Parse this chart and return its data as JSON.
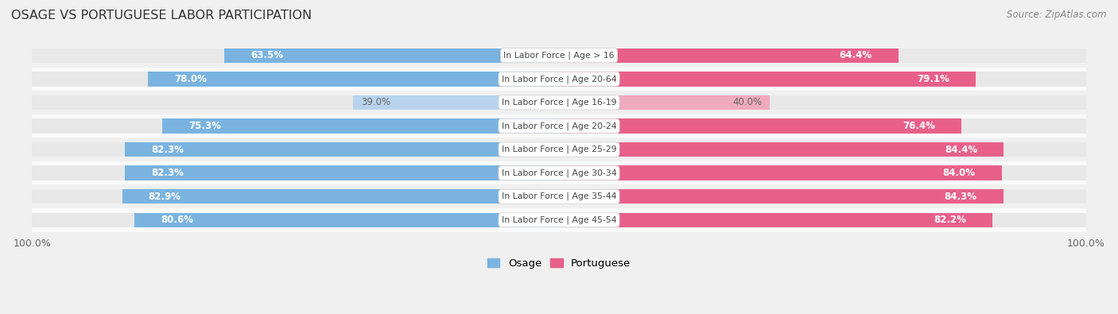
{
  "title": "OSAGE VS PORTUGUESE LABOR PARTICIPATION",
  "source": "Source: ZipAtlas.com",
  "categories": [
    "In Labor Force | Age > 16",
    "In Labor Force | Age 20-64",
    "In Labor Force | Age 16-19",
    "In Labor Force | Age 20-24",
    "In Labor Force | Age 25-29",
    "In Labor Force | Age 30-34",
    "In Labor Force | Age 35-44",
    "In Labor Force | Age 45-54"
  ],
  "osage_values": [
    63.5,
    78.0,
    39.0,
    75.3,
    82.3,
    82.3,
    82.9,
    80.6
  ],
  "portuguese_values": [
    64.4,
    79.1,
    40.0,
    76.4,
    84.4,
    84.0,
    84.3,
    82.2
  ],
  "osage_color": "#7ab3e0",
  "osage_color_light": "#b8d4ed",
  "portuguese_color": "#e8608a",
  "portuguese_color_light": "#f0aabf",
  "track_color": "#e8e8e8",
  "row_bg_colors": [
    "#f0f0f0",
    "#fafafa"
  ],
  "label_color_white": "#ffffff",
  "label_color_dark": "#666666",
  "title_color": "#333333",
  "source_color": "#888888",
  "max_value": 100.0,
  "bar_height": 0.62,
  "figsize": [
    14.06,
    3.95
  ],
  "dpi": 100
}
